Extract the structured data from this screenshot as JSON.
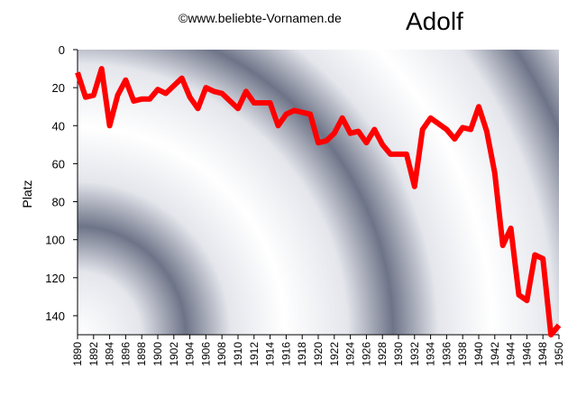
{
  "header": {
    "copyright": "©www.beliebte-Vornamen.de",
    "title": "Adolf"
  },
  "chart_data": {
    "type": "line",
    "ylabel": "Platz",
    "xlabel": "",
    "y_inverted": true,
    "ylim": [
      0,
      150
    ],
    "yticks": [
      0,
      20,
      40,
      60,
      80,
      100,
      120,
      140
    ],
    "xlim": [
      1890,
      1950
    ],
    "xticks": [
      1890,
      1892,
      1894,
      1896,
      1898,
      1900,
      1902,
      1904,
      1906,
      1908,
      1910,
      1912,
      1914,
      1916,
      1918,
      1920,
      1922,
      1924,
      1926,
      1928,
      1930,
      1932,
      1934,
      1936,
      1938,
      1940,
      1942,
      1944,
      1946,
      1948,
      1950
    ],
    "series_color": "#ff0000",
    "series": [
      {
        "x": [
          1890,
          1891,
          1892,
          1893,
          1894,
          1895,
          1896,
          1897,
          1898,
          1899,
          1900,
          1901,
          1902,
          1903,
          1904,
          1905,
          1906,
          1907,
          1908,
          1909,
          1910,
          1911,
          1912,
          1913,
          1914,
          1915,
          1916,
          1917,
          1918,
          1919,
          1920,
          1921,
          1922,
          1923,
          1924,
          1925,
          1926,
          1927,
          1928,
          1929,
          1930,
          1931,
          1932,
          1933,
          1934,
          1935,
          1936,
          1937,
          1938,
          1939,
          1940,
          1941,
          1942,
          1943,
          1944,
          1945,
          1946,
          1947,
          1948,
          1949,
          1950
        ],
        "y": [
          12,
          25,
          24,
          10,
          40,
          24,
          16,
          27,
          26,
          26,
          21,
          23,
          19,
          15,
          25,
          31,
          20,
          22,
          23,
          27,
          31,
          22,
          28,
          28,
          28,
          40,
          34,
          32,
          33,
          34,
          49,
          48,
          44,
          36,
          44,
          43,
          49,
          42,
          50,
          55,
          55,
          55,
          72,
          42,
          36,
          39,
          42,
          47,
          41,
          42,
          30,
          43,
          65,
          103,
          94,
          129,
          132,
          108,
          110,
          150,
          145
        ]
      }
    ]
  }
}
